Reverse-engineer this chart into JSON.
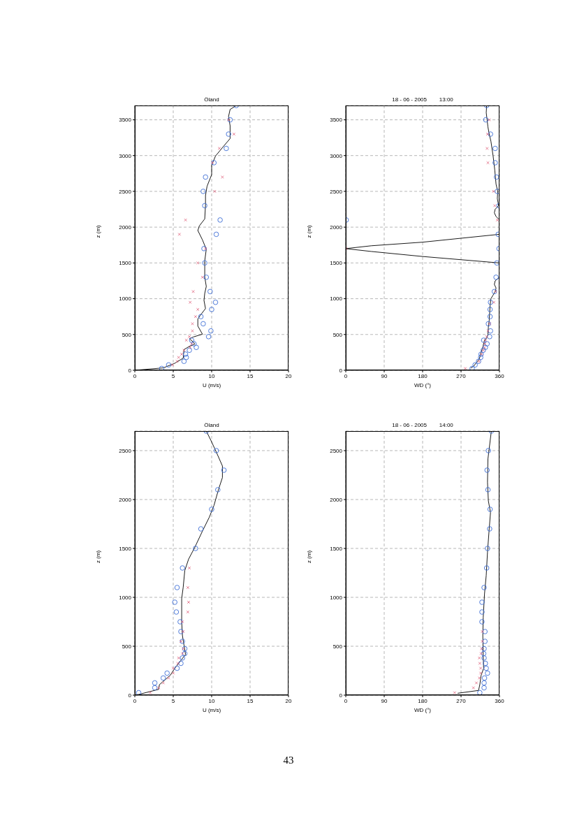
{
  "chart_data": [
    {
      "type": "scatter",
      "title": "Öland",
      "xlabel": "U  (m/s)",
      "ylabel": "z  (m)",
      "xlim": [
        0,
        20
      ],
      "xticks": [
        0,
        5,
        10,
        15,
        20
      ],
      "ylim": [
        0,
        3700
      ],
      "yticks": [
        0,
        500,
        1000,
        1500,
        2000,
        2500,
        3000,
        3500
      ],
      "grid": true,
      "series": [
        {
          "marker": "circle",
          "color": "#3f6fd6",
          "x": [
            13.2,
            12.4,
            12.2,
            11.9,
            10.3,
            9.2,
            8.9,
            9.1,
            11.1,
            10.6,
            9.0,
            9.1,
            9.3,
            9.8,
            10.5,
            10.0,
            8.6,
            8.9,
            9.9,
            9.6,
            7.4,
            7.7,
            8.0,
            7.1,
            6.6,
            6.7,
            6.4,
            4.4,
            3.5
          ],
          "values": [
            3700,
            3500,
            3300,
            3100,
            2900,
            2700,
            2500,
            2300,
            2100,
            1900,
            1700,
            1500,
            1300,
            1100,
            950,
            850,
            750,
            650,
            550,
            470,
            420,
            370,
            320,
            280,
            225,
            180,
            125,
            75,
            25
          ]
        },
        {
          "marker": "cross",
          "color": "#e0607a",
          "x": [
            12.2,
            12.9,
            11.0,
            10.1,
            11.4,
            10.4,
            6.6,
            5.8,
            9.2,
            8.2,
            8.8,
            7.6,
            7.2,
            8.2,
            7.9,
            7.5,
            7.5,
            7.1,
            6.7,
            7.4,
            7.2,
            6.4,
            6.1,
            5.7,
            5.5,
            4.9
          ],
          "values": [
            3500,
            3300,
            3100,
            2900,
            2700,
            2500,
            2100,
            1900,
            1700,
            1500,
            1300,
            1100,
            950,
            850,
            750,
            650,
            550,
            470,
            420,
            370,
            320,
            280,
            225,
            180,
            125,
            75
          ]
        },
        {
          "type": "line",
          "marker": "none",
          "line_style": "solid",
          "color": "#000000",
          "x": [
            0,
            3.7,
            5.2,
            6.3,
            6.4,
            7.2,
            7.8,
            7.6,
            7.1,
            7.6,
            8.8,
            8.2,
            8.2,
            8.5,
            9.2,
            9.0,
            9.1,
            9.3,
            9.1,
            9.1,
            9.3,
            8.8,
            8.2,
            8.4,
            9.1,
            9.2,
            9.2,
            9.4,
            10.0,
            10.0,
            10.5,
            11.5,
            12.4,
            12.4,
            12.2,
            12.4,
            13.2
          ],
          "values": [
            0,
            33,
            98,
            170,
            290,
            340,
            365,
            397,
            440,
            465,
            504,
            618,
            716,
            765,
            862,
            976,
            1074,
            1172,
            1302,
            1529,
            1692,
            1822,
            1953,
            2018,
            2115,
            2310,
            2441,
            2571,
            2734,
            2864,
            2994,
            3124,
            3238,
            3417,
            3547,
            3645,
            3700
          ]
        }
      ]
    },
    {
      "type": "scatter",
      "title": "18 - 06 - 2005        13:00",
      "xlabel": "WD (°)",
      "ylabel": "z  (m)",
      "xlim": [
        0,
        360
      ],
      "xticks": [
        0,
        90,
        180,
        270,
        360
      ],
      "ylim": [
        0,
        3700
      ],
      "yticks": [
        0,
        500,
        1000,
        1500,
        2000,
        2500,
        3000,
        3500
      ],
      "grid": true,
      "series": [
        {
          "marker": "circle",
          "color": "#3f6fd6",
          "x": [
            330,
            328,
            339,
            350,
            350,
            353,
            355,
            359,
            1,
            357,
            359,
            354,
            352,
            348,
            339,
            338,
            338,
            334,
            339,
            337,
            323,
            331,
            327,
            322,
            317,
            316,
            311,
            303,
            296
          ],
          "values": [
            3700,
            3500,
            3300,
            3100,
            2900,
            2700,
            2500,
            2300,
            2100,
            1900,
            1700,
            1500,
            1300,
            1100,
            950,
            850,
            750,
            650,
            550,
            470,
            420,
            370,
            320,
            280,
            225,
            180,
            125,
            75,
            25
          ]
        },
        {
          "marker": "cross",
          "color": "#e0607a",
          "x": [
            336,
            332,
            331,
            333,
            346,
            349,
            355,
            1,
            351,
            347,
            337,
            333,
            330,
            327,
            326,
            325,
            322,
            318,
            312,
            280
          ],
          "values": [
            3500,
            3300,
            3100,
            2900,
            2500,
            2300,
            2100,
            1700,
            1100,
            950,
            650,
            550,
            470,
            420,
            370,
            320,
            280,
            225,
            125,
            25
          ]
        },
        {
          "type": "line",
          "marker": "none",
          "line_style": "solid",
          "color": "#000000",
          "x": [
            330,
            329,
            331,
            333,
            336,
            340,
            345,
            349,
            352,
            356,
            355,
            358,
            350,
            348,
            352,
            360,
            null,
            360,
            180,
            60,
            0,
            60,
            180,
            360,
            null,
            360,
            350,
            348,
            352,
            350,
            345,
            340,
            338,
            337,
            336,
            334,
            333,
            330,
            325,
            322,
            320,
            317,
            315,
            312,
            305,
            300,
            293
          ],
          "values": [
            3700,
            3600,
            3500,
            3400,
            3300,
            3200,
            3000,
            2800,
            2600,
            2500,
            2400,
            2300,
            2250,
            2200,
            2150,
            2100,
            null,
            1900,
            1790,
            1740,
            1700,
            1660,
            1590,
            1500,
            null,
            1300,
            1250,
            1200,
            1150,
            1100,
            1050,
            1000,
            900,
            800,
            700,
            600,
            500,
            450,
            420,
            350,
            300,
            250,
            200,
            150,
            100,
            60,
            30
          ]
        }
      ]
    },
    {
      "type": "scatter",
      "title": "Öland",
      "xlabel": "U  (m/s)",
      "ylabel": "z  (m)",
      "xlim": [
        0,
        20
      ],
      "xticks": [
        0,
        5,
        10,
        15,
        20
      ],
      "ylim": [
        0,
        2700
      ],
      "yticks": [
        0,
        500,
        1000,
        1500,
        2000,
        2500
      ],
      "grid": true,
      "series": [
        {
          "marker": "circle",
          "color": "#3f6fd6",
          "x": [
            9.3,
            10.6,
            11.6,
            10.8,
            10.0,
            8.6,
            7.9,
            6.2,
            5.5,
            5.2,
            5.4,
            5.9,
            6.0,
            6.2,
            6.5,
            6.5,
            6.2,
            6.0,
            5.5,
            4.2,
            3.7,
            2.6,
            2.6,
            0.5
          ],
          "values": [
            2700,
            2500,
            2300,
            2100,
            1900,
            1700,
            1500,
            1300,
            1100,
            950,
            850,
            750,
            650,
            550,
            475,
            425,
            380,
            325,
            275,
            225,
            175,
            125,
            75,
            25
          ]
        },
        {
          "marker": "cross",
          "color": "#e0607a",
          "x": [
            7.1,
            6.9,
            7.0,
            6.9,
            6.2,
            6.3,
            6.0,
            6.3,
            6.2,
            5.7,
            5.6,
            5.0,
            5.0,
            4.4,
            3.7,
            3.1,
            2.0
          ],
          "values": [
            1300,
            1100,
            950,
            850,
            750,
            650,
            550,
            475,
            425,
            380,
            325,
            275,
            225,
            175,
            125,
            75,
            25
          ]
        },
        {
          "type": "line",
          "marker": "none",
          "line_style": "solid",
          "color": "#000000",
          "x": [
            0.4,
            3.1,
            3.2,
            4.6,
            5.2,
            5.9,
            6.6,
            6.4,
            6.2,
            6.1,
            6.1,
            6.3,
            6.5,
            7.0,
            7.8,
            8.8,
            9.7,
            10.3,
            10.9,
            11.4,
            11.4,
            10.6,
            9.9,
            9.3
          ],
          "values": [
            5,
            59,
            107,
            202,
            274,
            345,
            416,
            511,
            607,
            749,
            987,
            1106,
            1273,
            1391,
            1510,
            1677,
            1820,
            1939,
            2105,
            2224,
            2343,
            2486,
            2605,
            2700
          ]
        }
      ]
    },
    {
      "type": "scatter",
      "title": "18 - 06 - 2005        14:00",
      "xlabel": "WD (°)",
      "ylabel": "z  (m)",
      "xlim": [
        0,
        360
      ],
      "xticks": [
        0,
        90,
        180,
        270,
        360
      ],
      "ylim": [
        0,
        2700
      ],
      "yticks": [
        0,
        500,
        1000,
        1500,
        2000,
        2500
      ],
      "grid": true,
      "annotations": [
        "43"
      ],
      "series": [
        {
          "marker": "circle",
          "color": "#3f6fd6",
          "x": [
            341,
            334,
            331,
            333,
            338,
            337,
            332,
            330,
            324,
            319,
            319,
            319,
            326,
            326,
            324,
            323,
            324,
            327,
            329,
            332,
            325,
            324,
            324,
            314
          ],
          "values": [
            2700,
            2500,
            2300,
            2100,
            1900,
            1700,
            1500,
            1300,
            1100,
            950,
            850,
            750,
            650,
            550,
            475,
            425,
            380,
            325,
            275,
            225,
            175,
            125,
            75,
            25
          ]
        },
        {
          "marker": "cross",
          "color": "#e0607a",
          "x": [
            320,
            320,
            318,
            317,
            313,
            314,
            316,
            316,
            313,
            306,
            299,
            255
          ],
          "values": [
            650,
            550,
            475,
            425,
            380,
            325,
            275,
            225,
            175,
            125,
            75,
            25
          ]
        },
        {
          "type": "line",
          "marker": "none",
          "line_style": "solid",
          "color": "#000000",
          "x": [
            262,
            311,
            314,
            317,
            323,
            322,
            321,
            322,
            325,
            329,
            332,
            336,
            339,
            334,
            332,
            333,
            341
          ],
          "values": [
            19,
            48,
            107,
            202,
            274,
            392,
            607,
            797,
            1035,
            1225,
            1463,
            1701,
            1867,
            1986,
            2177,
            2415,
            2700
          ]
        }
      ]
    }
  ]
}
